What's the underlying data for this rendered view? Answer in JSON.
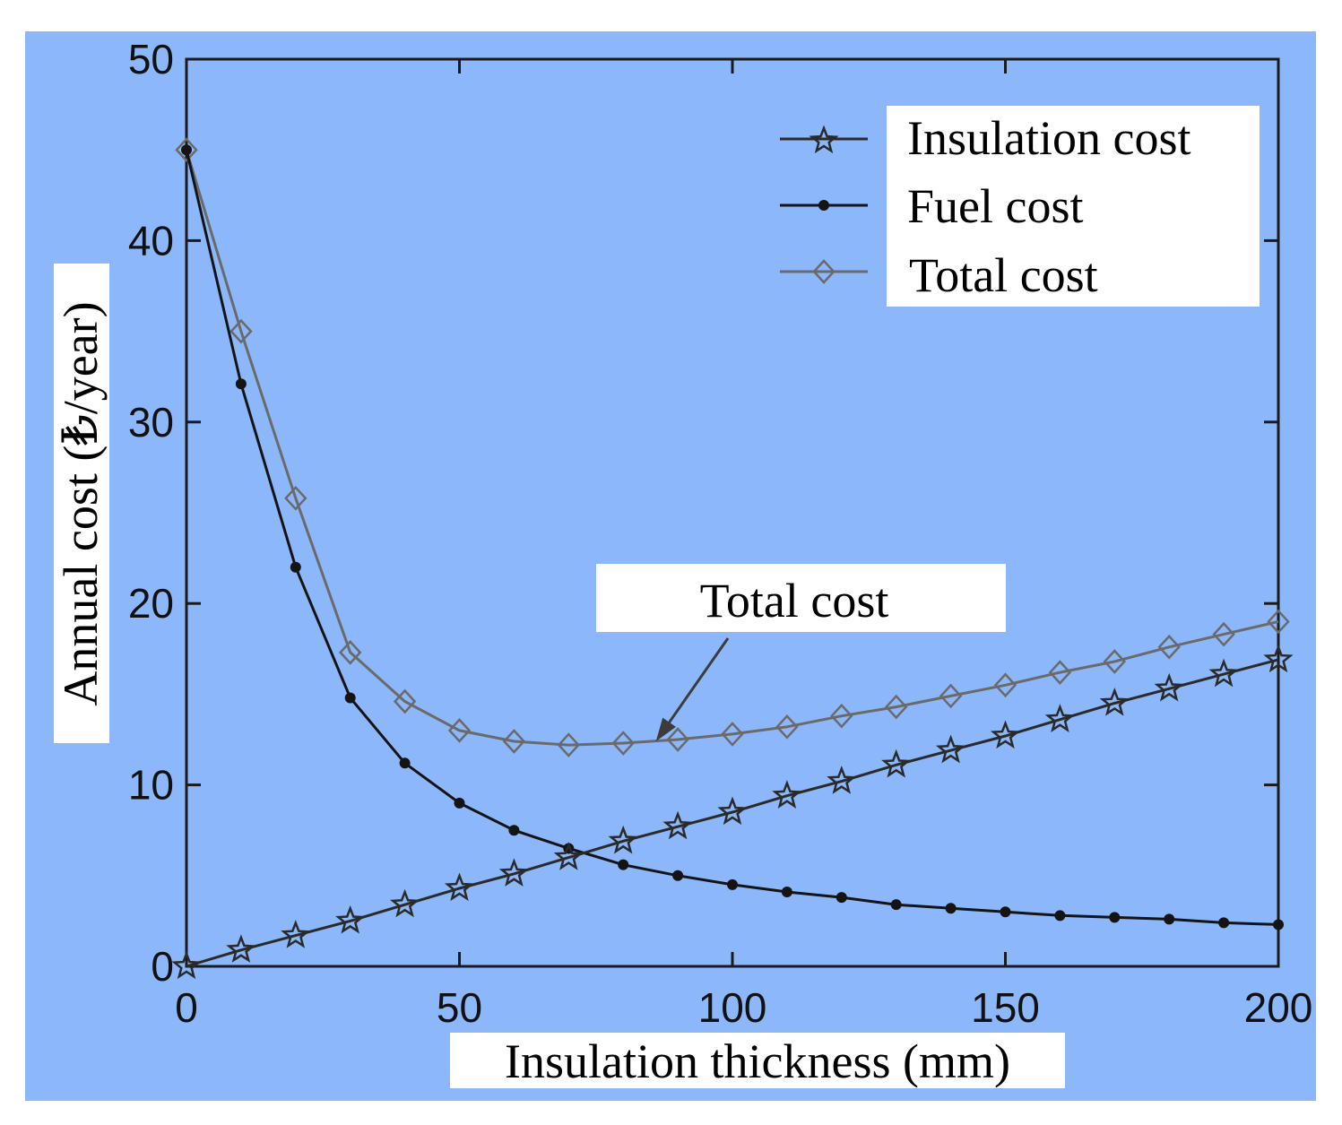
{
  "chart_data": {
    "type": "line",
    "title": "",
    "xlabel": "Insulation thickness (mm)",
    "ylabel": "Annual cost (₺/year)",
    "xlim": [
      0,
      200
    ],
    "ylim": [
      0,
      50
    ],
    "x_ticks": [
      0,
      50,
      100,
      150,
      200
    ],
    "y_ticks": [
      0,
      10,
      20,
      30,
      40,
      50
    ],
    "x_tick_labels": [
      "0",
      "50",
      "100",
      "150",
      "200"
    ],
    "y_tick_labels": [
      "0",
      "10",
      "20",
      "30",
      "40",
      "50"
    ],
    "grid": false,
    "legend_position": "top-right",
    "background_color": "#8cb8fb",
    "x": [
      0,
      10,
      20,
      30,
      40,
      50,
      60,
      70,
      80,
      90,
      100,
      110,
      120,
      130,
      140,
      150,
      160,
      170,
      180,
      190,
      200
    ],
    "series": [
      {
        "name": "Insulation cost",
        "marker": "star",
        "color": "#2a2a2a",
        "values": [
          0.0,
          0.9,
          1.7,
          2.5,
          3.4,
          4.3,
          5.1,
          6.0,
          6.9,
          7.7,
          8.5,
          9.4,
          10.2,
          11.1,
          11.9,
          12.7,
          13.6,
          14.5,
          15.3,
          16.1,
          16.9
        ]
      },
      {
        "name": "Fuel cost",
        "marker": "dot",
        "color": "#141414",
        "values": [
          45.0,
          32.1,
          22.0,
          14.8,
          11.2,
          9.0,
          7.5,
          6.5,
          5.6,
          5.0,
          4.5,
          4.1,
          3.8,
          3.4,
          3.2,
          3.0,
          2.8,
          2.7,
          2.6,
          2.4,
          2.3
        ]
      },
      {
        "name": "Total cost",
        "marker": "diamond",
        "color": "#6a6a6a",
        "values": [
          45.0,
          35.0,
          25.8,
          17.3,
          14.6,
          13.0,
          12.4,
          12.2,
          12.3,
          12.5,
          12.8,
          13.2,
          13.8,
          14.3,
          14.9,
          15.5,
          16.2,
          16.8,
          17.6,
          18.3,
          19.0
        ]
      }
    ],
    "annotation": {
      "text": "Total cost",
      "points_to_x": 86,
      "points_to_y": 12.4
    }
  }
}
